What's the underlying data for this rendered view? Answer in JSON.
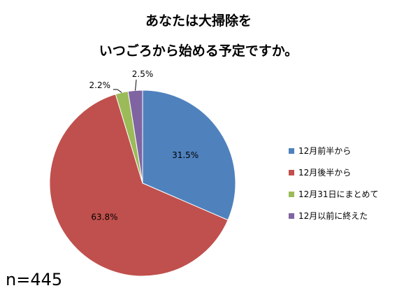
{
  "chart_data": {
    "type": "pie",
    "title": "あなたは大掃除を\nいつごろから始める予定ですか。",
    "title_lines": [
      "あなたは大掃除を",
      "いつごろから始める予定ですか。"
    ],
    "categories": [
      "12月前半から",
      "12月後半から",
      "12月31日にまとめて",
      "12月以前に終えた"
    ],
    "values": [
      31.5,
      63.8,
      2.2,
      2.5
    ],
    "labels": [
      "31.5%",
      "63.8%",
      "2.2%",
      "2.5%"
    ],
    "colors": [
      "#4f81bd",
      "#c0504d",
      "#9bbb59",
      "#8064a2"
    ],
    "legend_position": "right",
    "start_angle": "12 o'clock, clockwise"
  },
  "note": "n=445"
}
